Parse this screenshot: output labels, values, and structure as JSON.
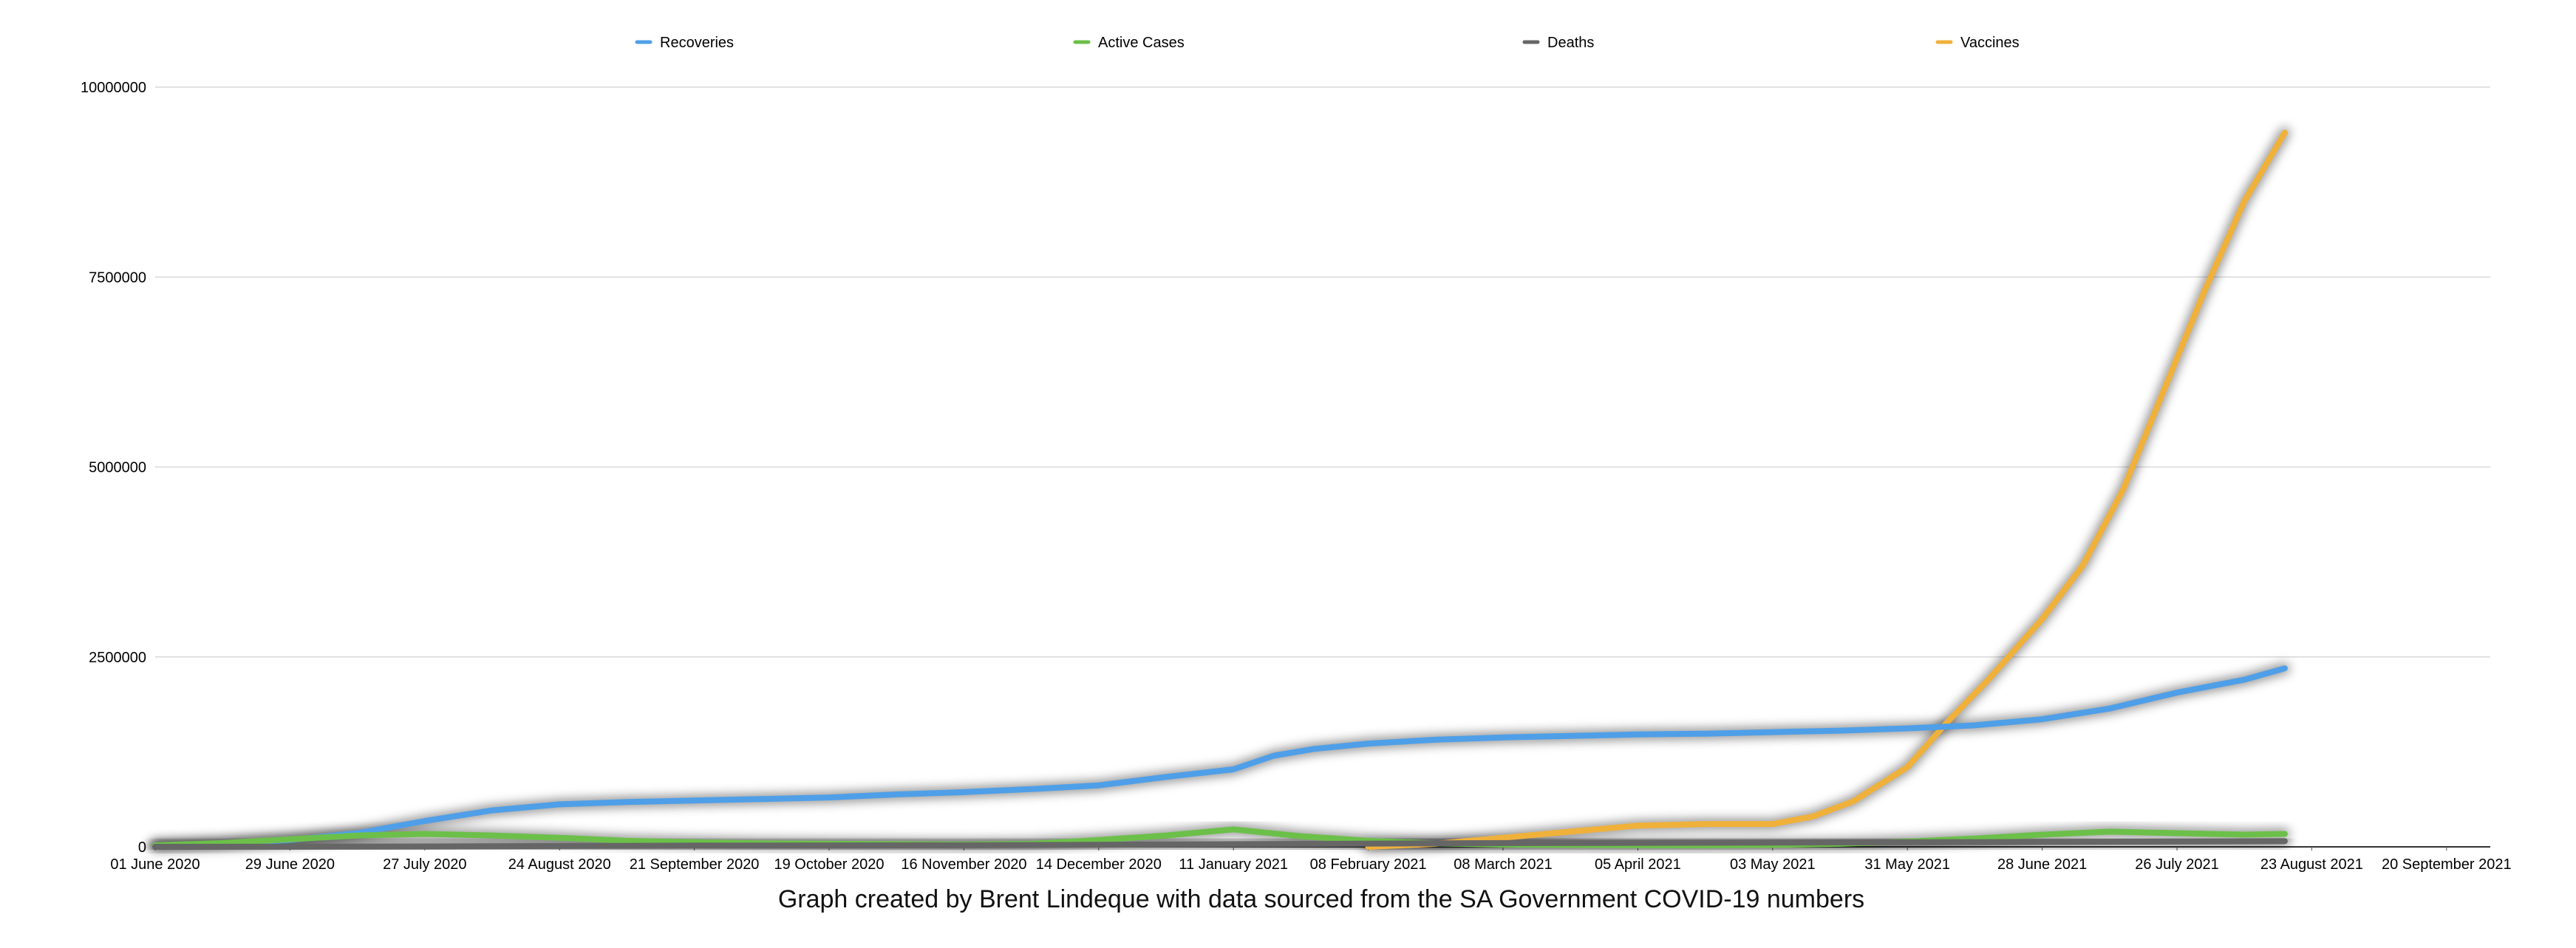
{
  "chart_data": {
    "type": "line",
    "title": "",
    "caption": "Graph created by Brent Lindeque with data sourced from the SA Government COVID-19 numbers",
    "xlabel": "",
    "ylabel": "",
    "ylim": [
      0,
      10000000
    ],
    "yticks": [
      "0",
      "2500000",
      "5000000",
      "7500000",
      "10000000"
    ],
    "xticks": [
      "01 June 2020",
      "29 June 2020",
      "27 July 2020",
      "24 August 2020",
      "21 September 2020",
      "19 October 2020",
      "16 November 2020",
      "14 December 2020",
      "11 January 2021",
      "08 February 2021",
      "08 March 2021",
      "05 April 2021",
      "03 May 2021",
      "31 May 2021",
      "28 June 2021",
      "26 July 2021",
      "23 August 2021",
      "20 September 2021"
    ],
    "grid": true,
    "legend_position": "top",
    "series": [
      {
        "name": "Recoveries",
        "color": "#4f9fe8",
        "x": [
          0,
          0.5,
          1,
          1.5,
          2,
          2.5,
          3,
          3.5,
          4,
          4.5,
          5,
          5.5,
          6,
          6.5,
          7,
          7.5,
          8,
          8.3,
          8.6,
          9,
          9.5,
          10,
          10.5,
          11,
          11.5,
          12,
          12.5,
          13,
          13.5,
          14,
          14.5,
          15,
          15.5,
          15.8
        ],
        "values": [
          10000,
          40000,
          90000,
          180000,
          340000,
          480000,
          560000,
          590000,
          610000,
          630000,
          650000,
          690000,
          720000,
          760000,
          810000,
          920000,
          1020000,
          1200000,
          1290000,
          1360000,
          1410000,
          1440000,
          1460000,
          1480000,
          1490000,
          1510000,
          1530000,
          1560000,
          1600000,
          1680000,
          1820000,
          2030000,
          2200000,
          2350000
        ]
      },
      {
        "name": "Active Cases",
        "color": "#6cc04a",
        "x": [
          0,
          0.5,
          1,
          1.5,
          2,
          2.5,
          3,
          3.5,
          4,
          4.5,
          5,
          5.5,
          6,
          6.5,
          7,
          7.5,
          8,
          8.5,
          9,
          9.5,
          10,
          10.5,
          11,
          11.5,
          12,
          12.5,
          13,
          13.5,
          14,
          14.5,
          15,
          15.5,
          15.8
        ],
        "values": [
          20000,
          50000,
          100000,
          150000,
          170000,
          150000,
          120000,
          80000,
          60000,
          45000,
          40000,
          35000,
          30000,
          40000,
          90000,
          150000,
          230000,
          140000,
          80000,
          45000,
          30000,
          25000,
          22000,
          20000,
          25000,
          40000,
          70000,
          110000,
          160000,
          200000,
          180000,
          160000,
          170000
        ]
      },
      {
        "name": "Deaths",
        "color": "#666666",
        "x": [
          0,
          2,
          4,
          6,
          8,
          10,
          12,
          14,
          15.8
        ],
        "values": [
          500,
          5000,
          17000,
          20000,
          35000,
          50000,
          55000,
          65000,
          75000
        ]
      },
      {
        "name": "Vaccines",
        "color": "#f0b13b",
        "x": [
          9,
          9.5,
          10,
          10.5,
          11,
          11.5,
          12,
          12.3,
          12.6,
          13,
          13.3,
          13.6,
          14,
          14.3,
          14.6,
          14.9,
          15.2,
          15.5,
          15.8
        ],
        "values": [
          0,
          40000,
          120000,
          200000,
          280000,
          300000,
          300000,
          400000,
          600000,
          1050000,
          1650000,
          2200000,
          3000000,
          3700000,
          4700000,
          6000000,
          7300000,
          8500000,
          9400000
        ]
      }
    ]
  }
}
